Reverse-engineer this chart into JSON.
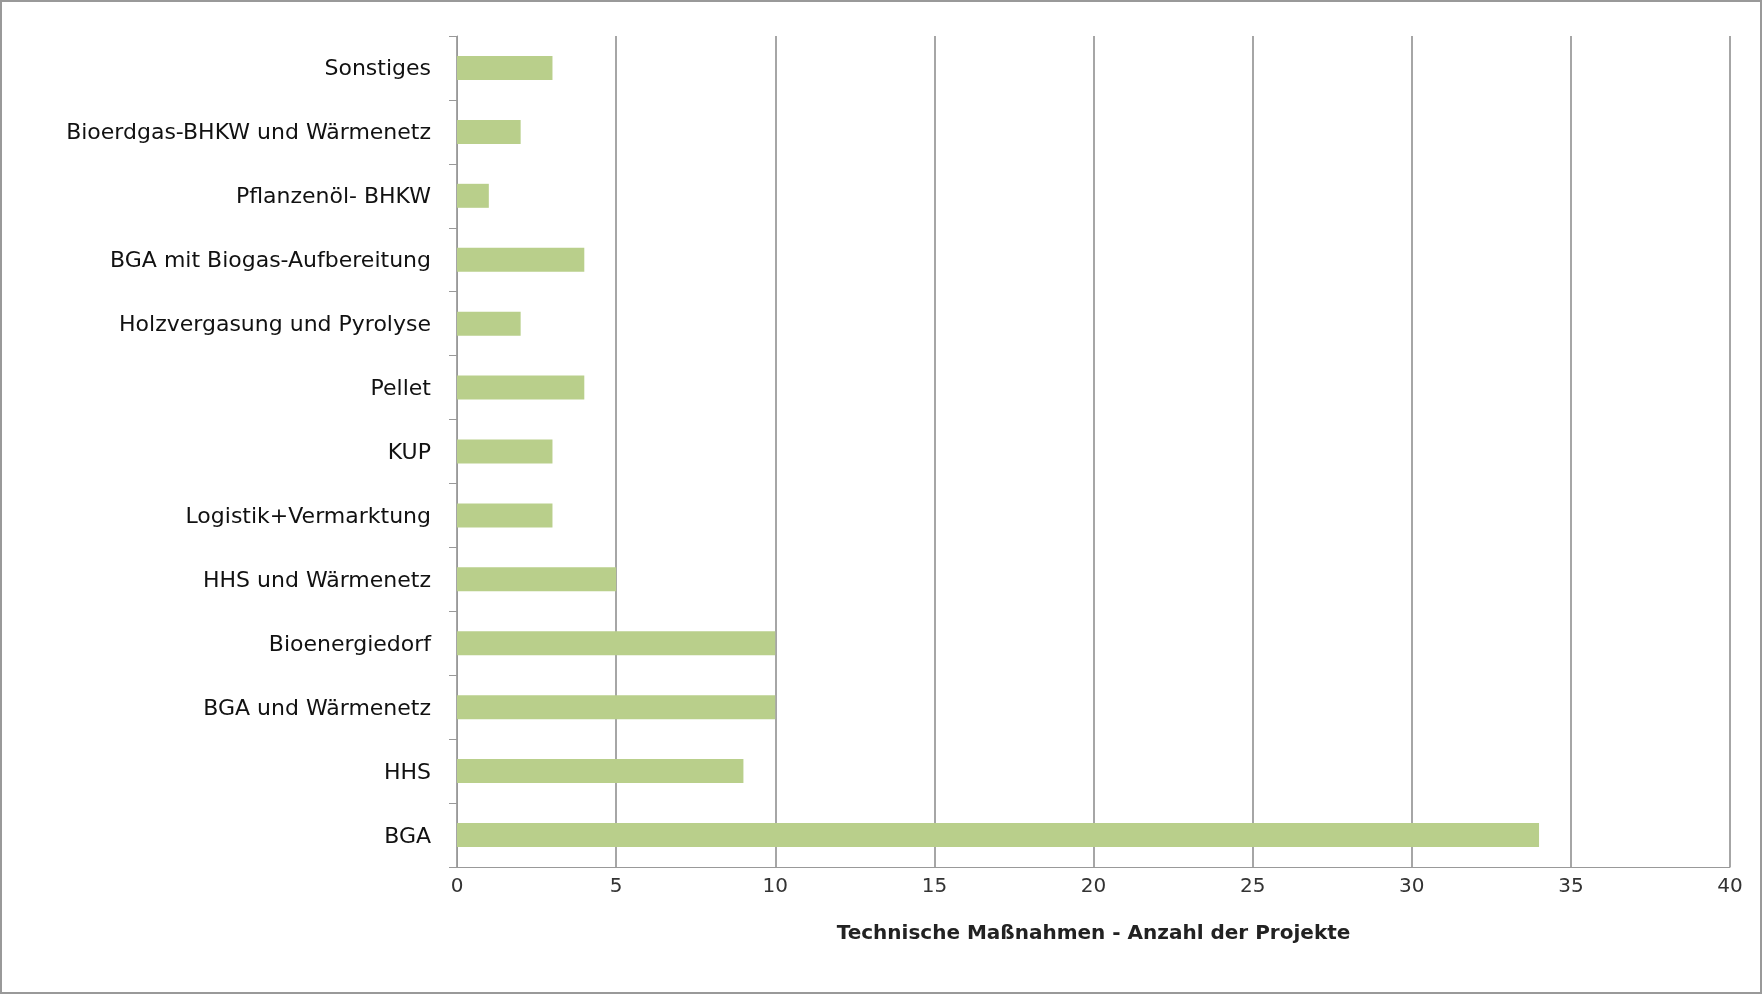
{
  "chart_data": {
    "type": "bar",
    "orientation": "horizontal",
    "xlabel": "Technische Maßnahmen - Anzahl der Projekte",
    "categories": [
      "Sonstiges",
      "Bioerdgas-BHKW und Wärmenetz",
      "Pflanzenöl- BHKW",
      "BGA mit Biogas-Aufbereitung",
      "Holzvergasung und Pyrolyse",
      "Pellet",
      "KUP",
      "Logistik+Vermarktung",
      "HHS und Wärmenetz",
      "Bioenergiedorf",
      "BGA und Wärmenetz",
      "HHS",
      "BGA"
    ],
    "values": [
      3,
      2,
      1,
      4,
      2,
      4,
      3,
      3,
      5,
      10,
      10,
      9,
      34
    ],
    "color": "#b9cf8b",
    "xlim": [
      0,
      40
    ],
    "xticks": [
      0,
      5,
      10,
      15,
      20,
      25,
      30,
      35,
      40
    ],
    "grid": "x"
  }
}
